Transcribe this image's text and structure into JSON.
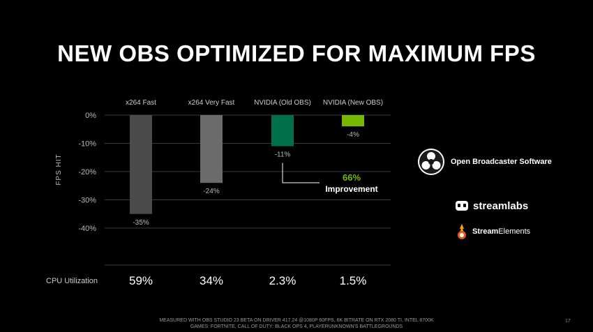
{
  "title": "NEW OBS OPTIMIZED FOR MAXIMUM FPS",
  "chart_data": {
    "type": "bar",
    "categories": [
      "x264 Fast",
      "x264 Very Fast",
      "NVIDIA (Old OBS)",
      "NVIDIA (New OBS)"
    ],
    "values": [
      -35,
      -24,
      -11,
      -4
    ],
    "value_labels": [
      "-35%",
      "-24%",
      "-11%",
      "-4%"
    ],
    "bar_colors": [
      "#4a4a4a",
      "#6b6b6b",
      "#00704a",
      "#76b900"
    ],
    "ylabel": "FPS HIT",
    "ylim": [
      -40,
      0
    ],
    "yticks": [
      0,
      -10,
      -20,
      -30,
      -40
    ],
    "ytick_labels": [
      "0%",
      "-10%",
      "-20%",
      "-30%",
      "-40%"
    ],
    "category_position": "top",
    "grid": true,
    "annotation": {
      "text_line1": "66%",
      "text_line2": "Improvement",
      "color": "#76b900",
      "between": [
        "NVIDIA (Old OBS)",
        "NVIDIA (New OBS)"
      ]
    },
    "cpu_utilization": {
      "label": "CPU Utilization",
      "values": [
        "59%",
        "34%",
        "2.3%",
        "1.5%"
      ]
    }
  },
  "logos": {
    "obs": {
      "icon": "obs-logo-icon",
      "text": "Open Broadcaster Software"
    },
    "streamlabs": {
      "icon": "streamlabs-logo-icon",
      "text": "streamlabs"
    },
    "streamelements": {
      "icon": "streamelements-logo-icon",
      "text_bold": "Stream",
      "text_light": "Elements"
    }
  },
  "footer": {
    "line1": "MEASURED WITH OBS STUDIO 23 BETA ON DRIVER 417.24 @1080P 60FPS, 6K BITRATE ON RTX 2080 TI, INTEL 8700K",
    "line2": "GAMES: FORTNITE, CALL OF DUTY: BLACK OPS 4, PLAYERUNKNOWN'S BATTLEGROUNDS"
  },
  "page_number": "17"
}
